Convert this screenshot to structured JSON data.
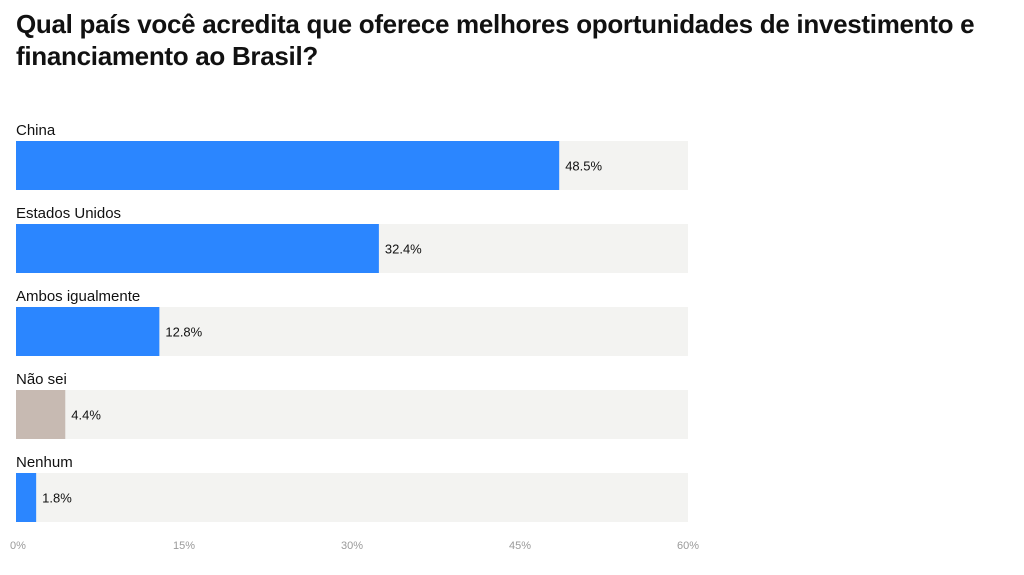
{
  "chart_data": {
    "type": "bar",
    "orientation": "horizontal",
    "title": "Qual país você acredita que oferece melhores oportunidades de investimento e financiamento ao Brasil?",
    "categories": [
      "China",
      "Estados Unidos",
      "Ambos igualmente",
      "Não sei",
      "Nenhum"
    ],
    "values": [
      48.5,
      32.4,
      12.8,
      4.4,
      1.8
    ],
    "value_labels": [
      "48.5%",
      "32.4%",
      "12.8%",
      "4.4%",
      "1.8%"
    ],
    "bar_colors": [
      "#2b86ff",
      "#2b86ff",
      "#2b86ff",
      "#c7bab2",
      "#2b86ff"
    ],
    "track_color": "#f3f3f1",
    "xlim": [
      0,
      60
    ],
    "x_ticks": [
      0,
      15,
      30,
      45,
      60
    ],
    "x_tick_labels": [
      "0%",
      "15%",
      "30%",
      "45%",
      "60%"
    ],
    "grid": false,
    "legend": "none"
  }
}
